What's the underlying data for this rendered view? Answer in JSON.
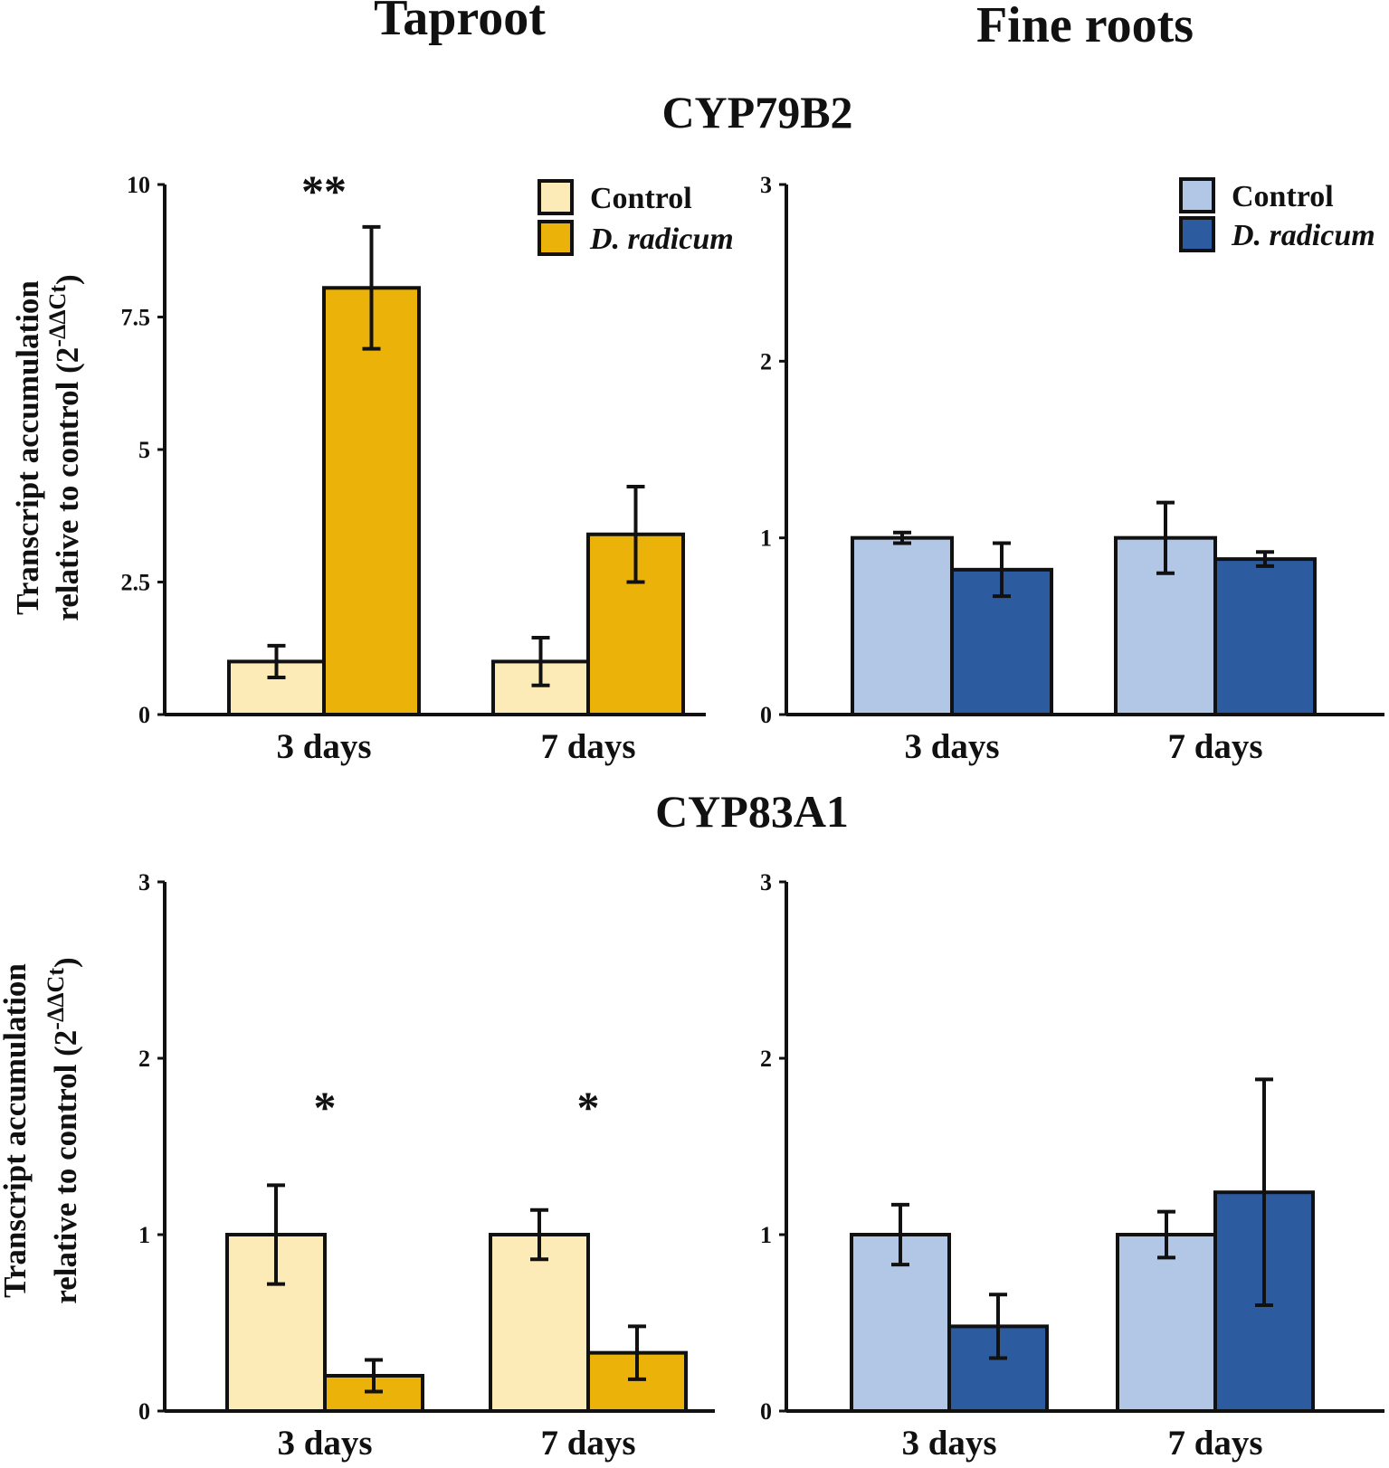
{
  "headers": {
    "taproot": "Taproot",
    "fine_roots": "Fine roots"
  },
  "gene_titles": {
    "cyp79b2": "CYP79B2",
    "cyp83a1": "CYP83A1"
  },
  "ylabel": {
    "line1": "Transcript accumulation",
    "line2_main": "relative to control (2",
    "line2_sup": "-ΔΔCt",
    "line2_end": ")"
  },
  "colors": {
    "taproot_control": "#FDEBB7",
    "taproot_treatment": "#EBB30A",
    "fine_control": "#B2C7E6",
    "fine_treatment": "#2C5BA0",
    "axis": "#111111"
  },
  "chart_data": [
    {
      "id": "cyp79b2_taproot",
      "type": "bar",
      "gene": "CYP79B2",
      "tissue": "Taproot",
      "categories": [
        "3 days",
        "7 days"
      ],
      "series": [
        {
          "name": "Control",
          "values": [
            1.0,
            1.0
          ],
          "errors": [
            0.3,
            0.45
          ]
        },
        {
          "name": "D. radicum",
          "values": [
            8.05,
            3.4
          ],
          "errors": [
            1.15,
            0.9
          ]
        }
      ],
      "yticks": [
        0,
        2.5,
        5,
        7.5,
        10
      ],
      "ytick_labels": [
        "0",
        "2.5",
        "5",
        "7.5",
        "10"
      ],
      "ylim": [
        0,
        10
      ],
      "legend": true,
      "legend_position": "top-right",
      "legend_entries": [
        "Control",
        "D. radicum"
      ],
      "significance": [
        "**",
        ""
      ]
    },
    {
      "id": "cyp79b2_fine",
      "type": "bar",
      "gene": "CYP79B2",
      "tissue": "Fine roots",
      "categories": [
        "3 days",
        "7 days"
      ],
      "series": [
        {
          "name": "Control",
          "values": [
            1.0,
            1.0
          ],
          "errors": [
            0.03,
            0.2
          ]
        },
        {
          "name": "D. radicum",
          "values": [
            0.82,
            0.88
          ],
          "errors": [
            0.15,
            0.04
          ]
        }
      ],
      "yticks": [
        0,
        1,
        2,
        3
      ],
      "ytick_labels": [
        "0",
        "1",
        "2",
        "3"
      ],
      "ylim": [
        0,
        3
      ],
      "legend": true,
      "legend_position": "top-right",
      "legend_entries": [
        "Control",
        "D. radicum"
      ],
      "significance": [
        "",
        ""
      ]
    },
    {
      "id": "cyp83a1_taproot",
      "type": "bar",
      "gene": "CYP83A1",
      "tissue": "Taproot",
      "categories": [
        "3 days",
        "7 days"
      ],
      "series": [
        {
          "name": "Control",
          "values": [
            1.0,
            1.0
          ],
          "errors": [
            0.28,
            0.14
          ]
        },
        {
          "name": "D. radicum",
          "values": [
            0.2,
            0.33
          ],
          "errors": [
            0.09,
            0.15
          ]
        }
      ],
      "yticks": [
        0,
        1,
        2,
        3
      ],
      "ytick_labels": [
        "0",
        "1",
        "2",
        "3"
      ],
      "ylim": [
        0,
        3
      ],
      "legend": false,
      "significance": [
        "*",
        "*"
      ]
    },
    {
      "id": "cyp83a1_fine",
      "type": "bar",
      "gene": "CYP83A1",
      "tissue": "Fine roots",
      "categories": [
        "3 days",
        "7 days"
      ],
      "series": [
        {
          "name": "Control",
          "values": [
            1.0,
            1.0
          ],
          "errors": [
            0.17,
            0.13
          ]
        },
        {
          "name": "D. radicum",
          "values": [
            0.48,
            1.24
          ],
          "errors": [
            0.18,
            0.64
          ]
        }
      ],
      "yticks": [
        0,
        1,
        2,
        3
      ],
      "ytick_labels": [
        "0",
        "1",
        "2",
        "3"
      ],
      "ylim": [
        0,
        3
      ],
      "legend": false,
      "significance": [
        "",
        ""
      ]
    }
  ]
}
